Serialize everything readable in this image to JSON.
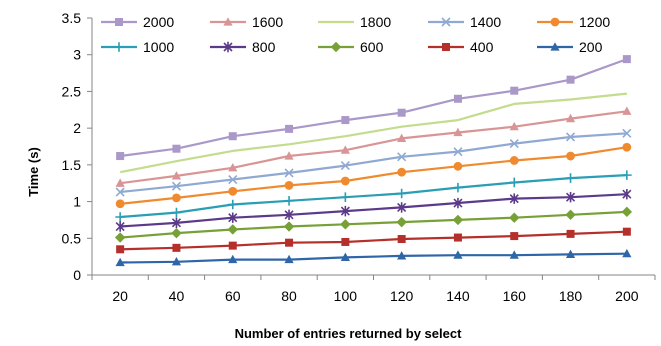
{
  "chart_data": {
    "type": "line",
    "title": "",
    "xlabel": "Number of entries returned by select",
    "ylabel": "Time (s)",
    "ylim": [
      0,
      3.5
    ],
    "ytick_step": 0.5,
    "yticks": [
      "0",
      "0.5",
      "1",
      "1.5",
      "2",
      "2.5",
      "3",
      "3.5"
    ],
    "grid": false,
    "legend_position": "top",
    "categories": [
      "20",
      "40",
      "60",
      "80",
      "100",
      "120",
      "140",
      "160",
      "180",
      "200"
    ],
    "series": [
      {
        "name": "2000",
        "color": "#a998c8",
        "marker": "square",
        "values": [
          1.62,
          1.72,
          1.89,
          1.99,
          2.11,
          2.21,
          2.4,
          2.51,
          2.66,
          2.94
        ]
      },
      {
        "name": "1600",
        "color": "#d99595",
        "marker": "triangle",
        "values": [
          1.25,
          1.35,
          1.46,
          1.62,
          1.7,
          1.86,
          1.94,
          2.02,
          2.13,
          2.23
        ]
      },
      {
        "name": "1800",
        "color": "#c3dc8e",
        "marker": "none",
        "values": [
          1.4,
          1.55,
          1.69,
          1.78,
          1.89,
          2.02,
          2.11,
          2.33,
          2.39,
          2.47
        ]
      },
      {
        "name": "1400",
        "color": "#8fa9d2",
        "marker": "x",
        "values": [
          1.13,
          1.21,
          1.3,
          1.39,
          1.49,
          1.61,
          1.68,
          1.79,
          1.88,
          1.93
        ]
      },
      {
        "name": "1200",
        "color": "#f08a2e",
        "marker": "circle",
        "values": [
          0.97,
          1.05,
          1.14,
          1.22,
          1.28,
          1.4,
          1.48,
          1.56,
          1.62,
          1.74
        ]
      },
      {
        "name": "1000",
        "color": "#2a9eb5",
        "marker": "plus",
        "values": [
          0.79,
          0.85,
          0.96,
          1.01,
          1.06,
          1.11,
          1.19,
          1.26,
          1.32,
          1.36
        ]
      },
      {
        "name": "800",
        "color": "#5c3a8a",
        "marker": "star",
        "values": [
          0.66,
          0.71,
          0.78,
          0.82,
          0.87,
          0.92,
          0.98,
          1.04,
          1.06,
          1.1
        ]
      },
      {
        "name": "600",
        "color": "#77a037",
        "marker": "diamond",
        "values": [
          0.51,
          0.57,
          0.62,
          0.66,
          0.69,
          0.72,
          0.75,
          0.78,
          0.82,
          0.86
        ]
      },
      {
        "name": "400",
        "color": "#b5302a",
        "marker": "square",
        "values": [
          0.35,
          0.37,
          0.4,
          0.44,
          0.45,
          0.49,
          0.51,
          0.53,
          0.56,
          0.59
        ]
      },
      {
        "name": "200",
        "color": "#2f66a8",
        "marker": "triangle",
        "values": [
          0.17,
          0.18,
          0.21,
          0.21,
          0.24,
          0.26,
          0.27,
          0.27,
          0.28,
          0.29
        ]
      }
    ]
  }
}
